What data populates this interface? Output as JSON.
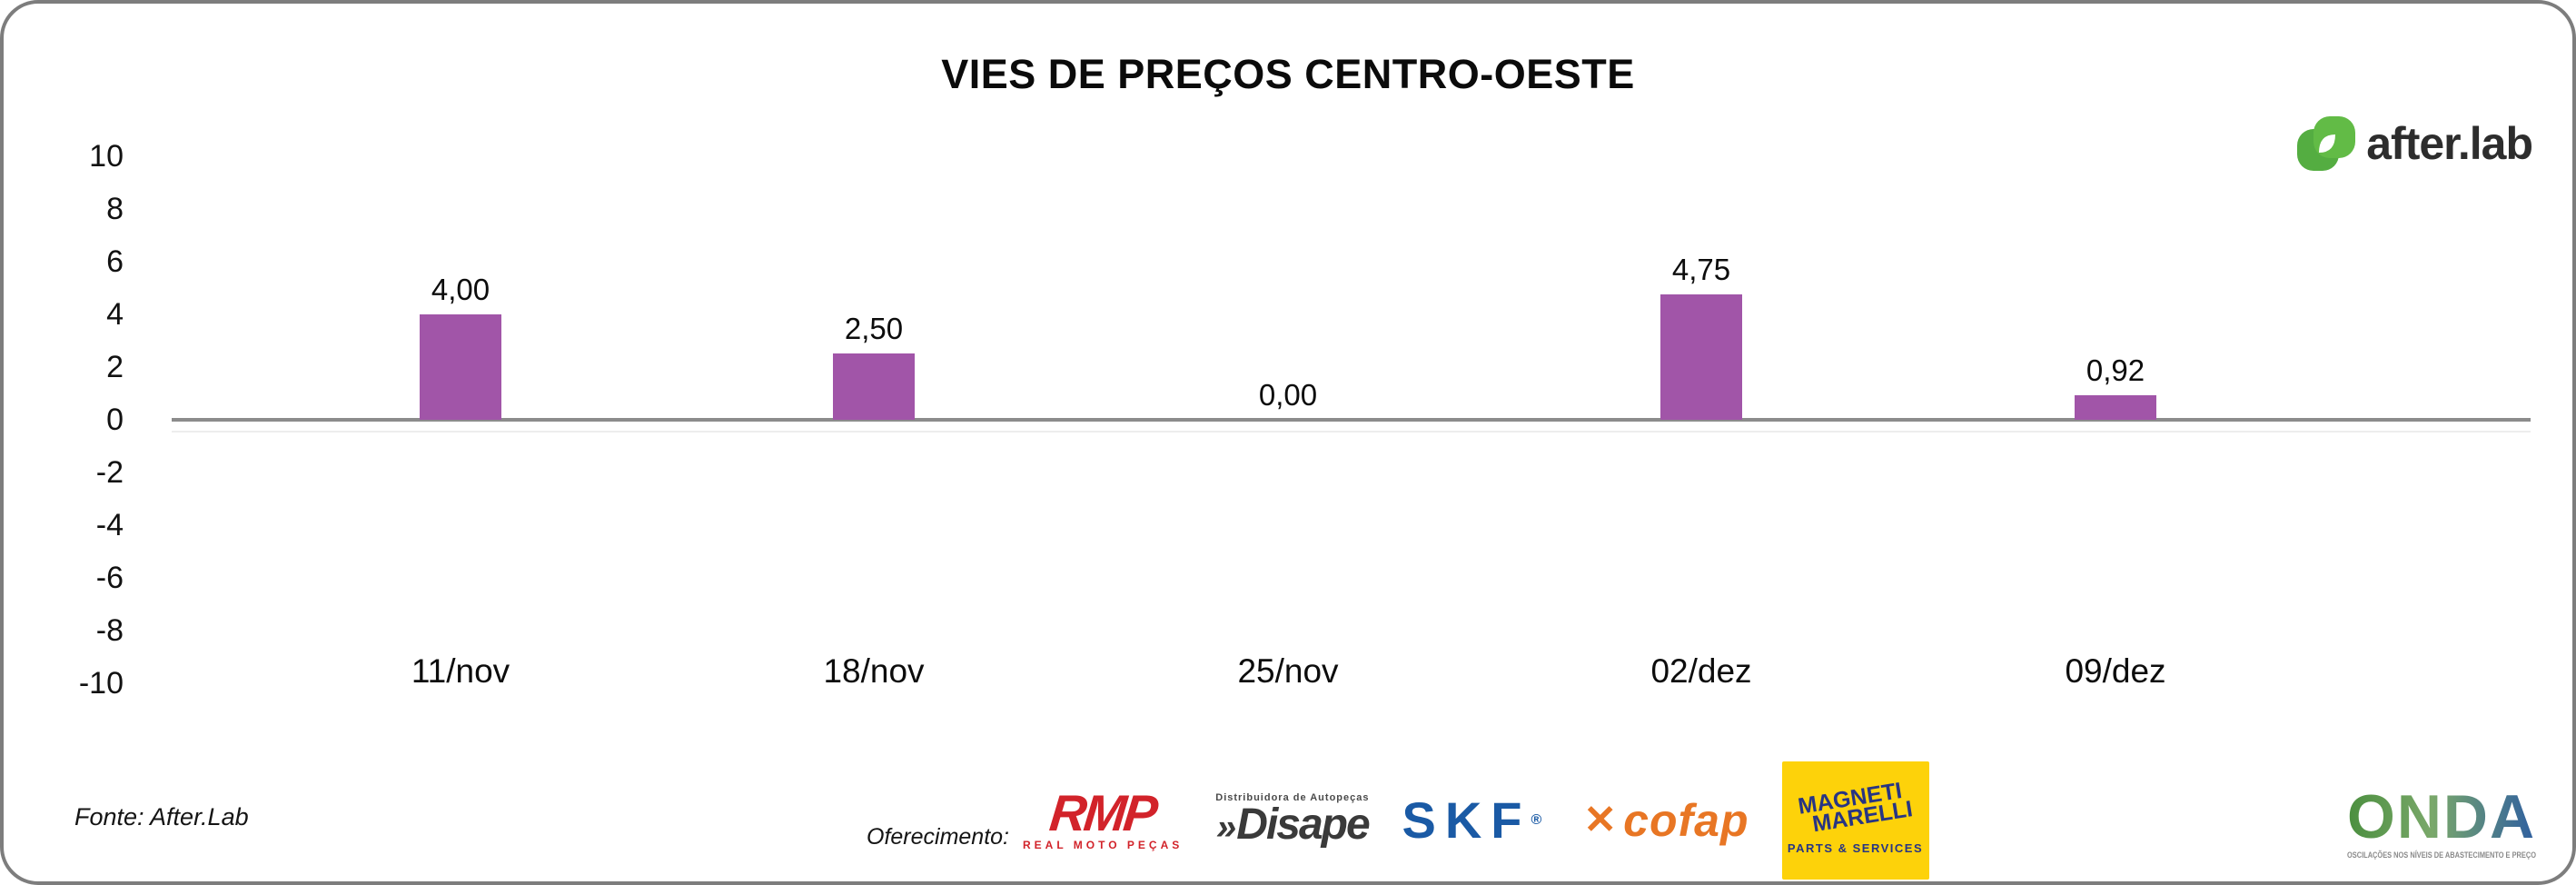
{
  "frame": {
    "border_color": "#7d7d7d",
    "background": "#ffffff"
  },
  "brand": {
    "name": "after.lab",
    "icon": "afterlab-leaf-icon",
    "green": "#5bba47",
    "text_color": "#2d2d2d"
  },
  "chart_data": {
    "type": "bar",
    "title": "VIES DE PREÇOS CENTRO-OESTE",
    "categories": [
      "11/nov",
      "18/nov",
      "25/nov",
      "02/dez",
      "09/dez"
    ],
    "values": [
      4.0,
      2.5,
      0.0,
      4.75,
      0.92
    ],
    "value_labels": [
      "4,00",
      "2,50",
      "0,00",
      "4,75",
      "0,92"
    ],
    "bar_color": "#a155a8",
    "baseline_color": "#8c8c8c",
    "ylim": [
      -10,
      10
    ],
    "yticks": [
      10,
      8,
      6,
      4,
      2,
      0,
      -2,
      -4,
      -6,
      -8,
      -10
    ],
    "xlabel": "",
    "ylabel": "",
    "grid": false,
    "legend": false
  },
  "footer": {
    "source": "Fonte: After.Lab",
    "sponsors_label": "Oferecimento:",
    "sponsors": [
      {
        "name": "RMP",
        "subtitle": "REAL MOTO PEÇAS",
        "color": "#d2232a"
      },
      {
        "name": "Disape",
        "prefix": "»",
        "subtitle": "Distribuidora de Autopeças",
        "color": "#3a3a3a"
      },
      {
        "name": "SKF",
        "registered": "®",
        "color": "#1a5aa5"
      },
      {
        "name": "cofap",
        "mark": "✕",
        "color": "#e87624"
      },
      {
        "name": "Magneti Marelli",
        "line1": "MAGNETI",
        "line2": "MARELLI",
        "subtitle": "PARTS & SERVICES",
        "bg_color": "#fdd20a",
        "text_color": "#283583"
      }
    ],
    "onda": {
      "name": "ONDA",
      "tagline": "OSCILAÇÕES NOS NÍVEIS DE ABASTECIMENTO E PREÇO",
      "gradient": [
        "#4b8f3f",
        "#7aa86a",
        "#2f5fa0"
      ]
    }
  }
}
